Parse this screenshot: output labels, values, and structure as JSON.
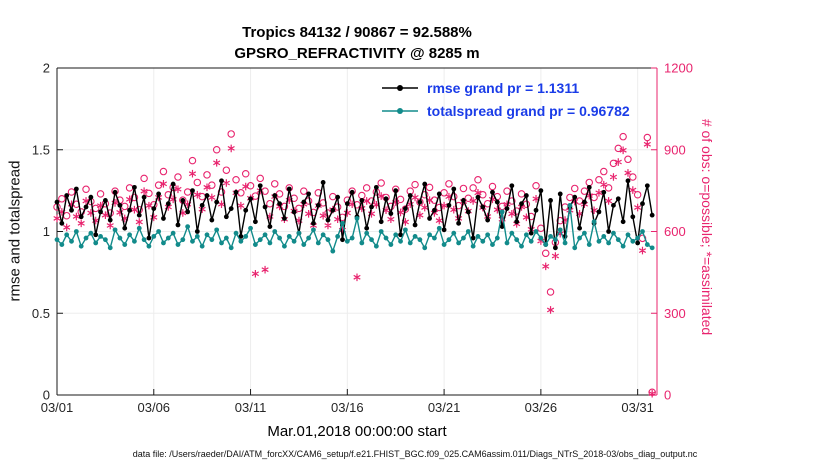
{
  "title": {
    "line1": "Tropics 84132 / 90867 = 92.588%",
    "line2": "GPSRO_REFRACTIVITY @ 8285 m"
  },
  "legend": {
    "items": [
      {
        "label": "rmse grand pr = 1.1311"
      },
      {
        "label": "totalspread grand pr = 0.96782"
      }
    ]
  },
  "footer": "data file: /Users/raeder/DAI/ATM_forcXX/CAM6_setup/f.e21.FHIST_BGC.f09_025.CAM6assim.011/Diags_NTrS_2018-03/obs_diag_output.nc",
  "colors": {
    "pink": "#e8246e",
    "teal": "#128b8b",
    "black": "#000000",
    "legend_text": "#1a3ce8",
    "axis": "#1a1a1a",
    "tick_text": "#262626",
    "grid": "#ededed"
  },
  "chart_data": {
    "type": "line",
    "title": "Tropics 84132 / 90867 = 92.588%",
    "subtitle": "GPSRO_REFRACTIVITY @ 8285 m",
    "xlabel": "Mar.01,2018 00:00:00 start",
    "ylabel_left": "rmse and totalspread",
    "ylabel_right": "# of obs: o=possible; *=assimilated",
    "totals": {
      "assimilated": 84132,
      "possible": 90867,
      "percent": 92.588
    },
    "x_tick_labels": [
      "03/01",
      "03/06",
      "03/11",
      "03/16",
      "03/21",
      "03/26",
      "03/31"
    ],
    "x_tick_days": [
      0,
      5,
      10,
      15,
      20,
      25,
      30
    ],
    "x_range_days": [
      0,
      31
    ],
    "ylim_left": [
      0,
      2
    ],
    "ylim_right": [
      0,
      1200
    ],
    "y_ticks_left": [
      0,
      0.5,
      1,
      1.5,
      2
    ],
    "y_ticks_right": [
      0,
      300,
      600,
      900,
      1200
    ],
    "x_start_day": 0,
    "x_step_days": 0.25,
    "grid": true,
    "legend_position": "top-center-inside",
    "series": [
      {
        "name": "rmse",
        "axis": "left",
        "type": "line",
        "marker": "filled-circle",
        "color": "#000000",
        "grand_mean": 1.1311,
        "values": [
          1.18,
          1.05,
          1.22,
          1.13,
          1.26,
          1.09,
          1.15,
          1.21,
          0.98,
          1.12,
          1.19,
          1.07,
          1.24,
          1.16,
          1.02,
          1.13,
          1.27,
          1.1,
          1.21,
          0.96,
          1.14,
          1.23,
          1.08,
          1.17,
          1.29,
          1.04,
          1.19,
          1.12,
          1.25,
          1.0,
          1.16,
          1.22,
          1.07,
          1.18,
          1.31,
          1.09,
          1.14,
          1.24,
          0.97,
          1.13,
          1.2,
          1.06,
          1.28,
          1.15,
          1.03,
          1.22,
          1.17,
          1.08,
          1.26,
          1.12,
          0.99,
          1.18,
          1.23,
          1.05,
          1.16,
          1.3,
          1.07,
          1.13,
          1.21,
          0.95,
          1.17,
          1.24,
          1.09,
          1.19,
          1.02,
          1.15,
          1.27,
          1.06,
          1.2,
          1.11,
          1.25,
          0.98,
          1.14,
          1.22,
          1.04,
          1.18,
          1.29,
          1.08,
          1.13,
          1.23,
          1.01,
          1.16,
          1.26,
          1.05,
          1.19,
          1.12,
          0.96,
          1.21,
          1.15,
          1.07,
          1.24,
          1.18,
          1.03,
          1.14,
          1.28,
          1.06,
          1.17,
          1.22,
          0.99,
          1.13,
          1.25,
          0.92,
          1.19,
          0.9,
          1.23,
          0.97,
          1.15,
          1.21,
          1.02,
          1.18,
          1.27,
          1.05,
          1.12,
          1.24,
          1.0,
          1.16,
          1.2,
          1.06,
          1.31,
          1.09,
          0.93,
          1.17,
          1.28,
          1.1
        ]
      },
      {
        "name": "totalspread",
        "axis": "left",
        "type": "line",
        "marker": "filled-circle",
        "color": "#128b8b",
        "grand_mean": 0.96782,
        "values": [
          0.95,
          0.92,
          0.98,
          0.94,
          1.0,
          0.91,
          0.96,
          0.99,
          0.93,
          0.97,
          0.95,
          0.9,
          1.01,
          0.96,
          0.92,
          0.98,
          0.94,
          1.02,
          0.95,
          0.91,
          0.97,
          1.0,
          0.93,
          0.96,
          0.99,
          0.92,
          0.95,
          1.03,
          0.94,
          0.97,
          0.91,
          0.98,
          0.95,
          1.01,
          0.93,
          0.96,
          0.9,
          0.99,
          0.94,
          0.97,
          1.02,
          0.92,
          0.95,
          0.98,
          0.93,
          1.0,
          0.96,
          0.91,
          0.97,
          0.94,
          0.99,
          0.92,
          0.96,
          1.01,
          0.93,
          0.98,
          0.95,
          0.88,
          0.97,
          1.05,
          0.94,
          0.96,
          1.08,
          0.93,
          0.99,
          0.95,
          0.91,
          1.0,
          0.96,
          0.92,
          0.98,
          0.94,
          1.01,
          0.93,
          0.97,
          0.95,
          0.9,
          0.98,
          0.96,
          1.02,
          0.92,
          0.95,
          0.99,
          0.93,
          0.96,
          1.0,
          0.91,
          0.97,
          0.94,
          0.98,
          0.92,
          0.96,
          1.12,
          0.93,
          0.99,
          0.95,
          0.91,
          0.98,
          0.94,
          1.0,
          0.96,
          0.92,
          0.97,
          0.95,
          1.01,
          0.93,
          1.16,
          0.9,
          0.96,
          0.99,
          0.92,
          1.06,
          0.94,
          0.97,
          0.93,
          0.99,
          0.95,
          0.91,
          0.98,
          0.94,
          0.96,
          1.0,
          0.92,
          0.9
        ]
      },
      {
        "name": "possible",
        "axis": "right",
        "type": "scatter",
        "marker": "open-circle",
        "color": "#e8246e",
        "values": [
          690,
          720,
          658,
          745,
          700,
          672,
          755,
          710,
          685,
          738,
          702,
          668,
          748,
          715,
          692,
          760,
          725,
          680,
          795,
          740,
          698,
          770,
          820,
          735,
          762,
          800,
          715,
          745,
          860,
          780,
          728,
          808,
          770,
          900,
          745,
          825,
          958,
          790,
          742,
          812,
          768,
          730,
          795,
          748,
          702,
          775,
          738,
          692,
          760,
          722,
          685,
          748,
          712,
          670,
          742,
          705,
          668,
          728,
          690,
          652,
          715,
          748,
          698,
          732,
          760,
          712,
          745,
          778,
          725,
          692,
          755,
          718,
          682,
          748,
          772,
          708,
          735,
          762,
          715,
          688,
          742,
          775,
          728,
          695,
          758,
          722,
          760,
          790,
          735,
          702,
          765,
          728,
          692,
          748,
          712,
          675,
          738,
          700,
          655,
          768,
          612,
          520,
          378,
          560,
          640,
          690,
          725,
          758,
          712,
          748,
          780,
          725,
          790,
          820,
          760,
          850,
          905,
          948,
          865,
          800,
          735,
          575,
          945,
          10
        ]
      },
      {
        "name": "assimilated",
        "axis": "right",
        "type": "scatter",
        "marker": "asterisk",
        "color": "#e8246e",
        "values": [
          648,
          672,
          615,
          700,
          655,
          630,
          712,
          668,
          640,
          695,
          660,
          622,
          705,
          670,
          648,
          718,
          680,
          635,
          748,
          695,
          652,
          725,
          775,
          690,
          718,
          755,
          668,
          700,
          812,
          735,
          682,
          762,
          725,
          852,
          700,
          778,
          905,
          742,
          695,
          765,
          722,
          445,
          750,
          460,
          655,
          728,
          692,
          645,
          715,
          675,
          640,
          700,
          665,
          622,
          695,
          658,
          622,
          680,
          645,
          605,
          668,
          700,
          432,
          685,
          712,
          665,
          698,
          730,
          678,
          645,
          708,
          670,
          635,
          700,
          725,
          660,
          688,
          715,
          668,
          640,
          695,
          728,
          680,
          648,
          710,
          675,
          712,
          742,
          688,
          655,
          718,
          680,
          645,
          700,
          665,
          628,
          690,
          652,
          608,
          720,
          565,
          472,
          312,
          510,
          592,
          642,
          678,
          710,
          665,
          700,
          732,
          678,
          742,
          772,
          712,
          800,
          855,
          898,
          815,
          752,
          688,
          530,
          920,
          5
        ]
      }
    ]
  }
}
